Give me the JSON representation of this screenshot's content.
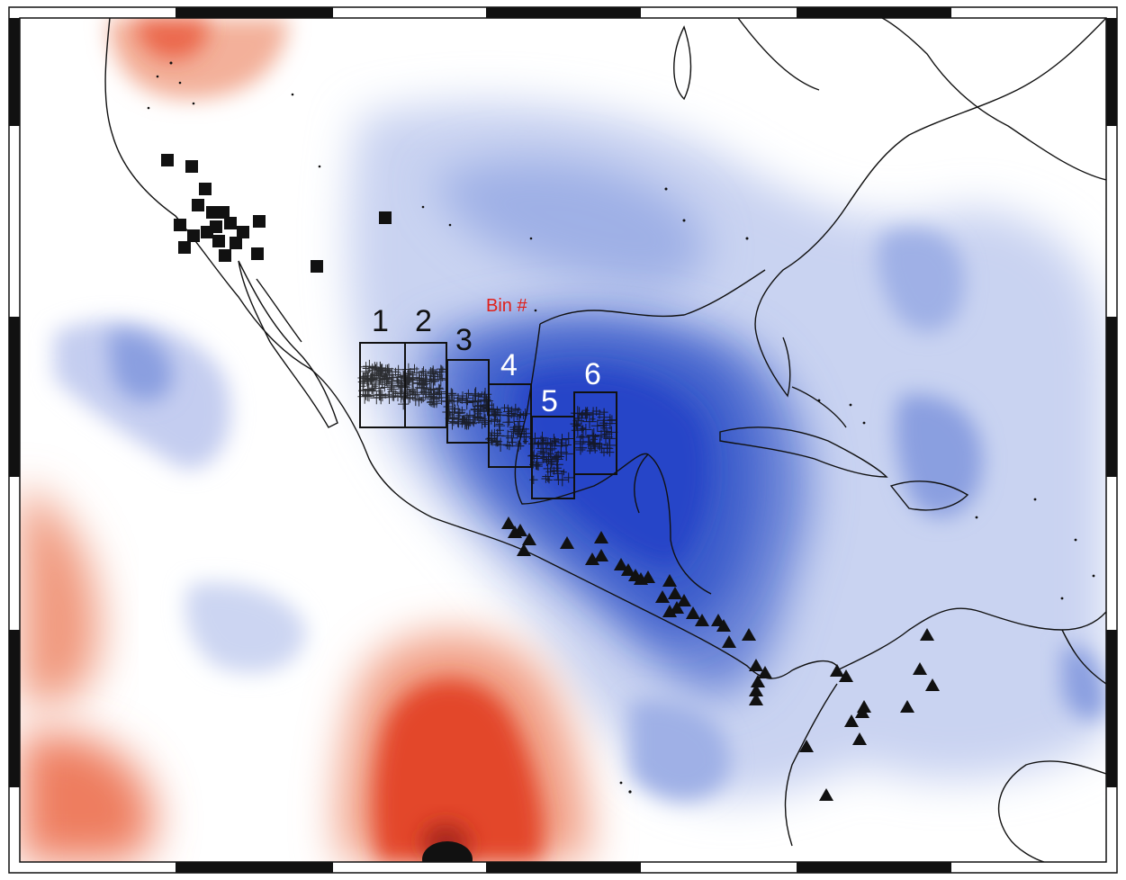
{
  "map": {
    "bin_title": "Bin #",
    "bin_title_color": "#e0201a",
    "bins": [
      {
        "label": "1",
        "label_color": "#111111"
      },
      {
        "label": "2",
        "label_color": "#111111"
      },
      {
        "label": "3",
        "label_color": "#111111"
      },
      {
        "label": "4",
        "label_color": "#ffffff"
      },
      {
        "label": "5",
        "label_color": "#ffffff"
      },
      {
        "label": "6",
        "label_color": "#ffffff"
      }
    ],
    "colors": {
      "slow_anomaly": "#e8482a",
      "fast_anomaly": "#2845c8",
      "coastline": "#111111",
      "symbols": "#111111"
    },
    "symbol_sets": {
      "squares": "station-square-icon",
      "triangles": "volcano-triangle-icon",
      "crosses": "event-cross-icon"
    }
  }
}
